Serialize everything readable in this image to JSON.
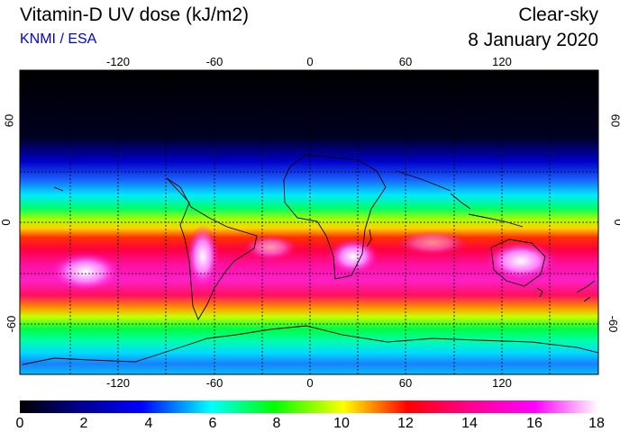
{
  "header": {
    "title": "Vitamin-D UV dose (kJ/m2)",
    "credit": "KNMI / ESA",
    "scenario": "Clear-sky",
    "date": "8 January 2020"
  },
  "map": {
    "lon_ticks": [
      "-120",
      "-60",
      "0",
      "60",
      "120"
    ],
    "lat_ticks": [
      "60",
      "0",
      "-60"
    ],
    "colorbar_labels": [
      "0",
      "2",
      "4",
      "6",
      "8",
      "10",
      "12",
      "14",
      "16",
      "18"
    ],
    "value_range": [
      0,
      18
    ],
    "colors": {
      "palette": [
        "#000000",
        "#0000ff",
        "#00ffff",
        "#00ff00",
        "#ffff00",
        "#ff0000",
        "#ff00ff",
        "#ffffff"
      ],
      "coastline": "#000000",
      "grid": "#000000"
    }
  }
}
